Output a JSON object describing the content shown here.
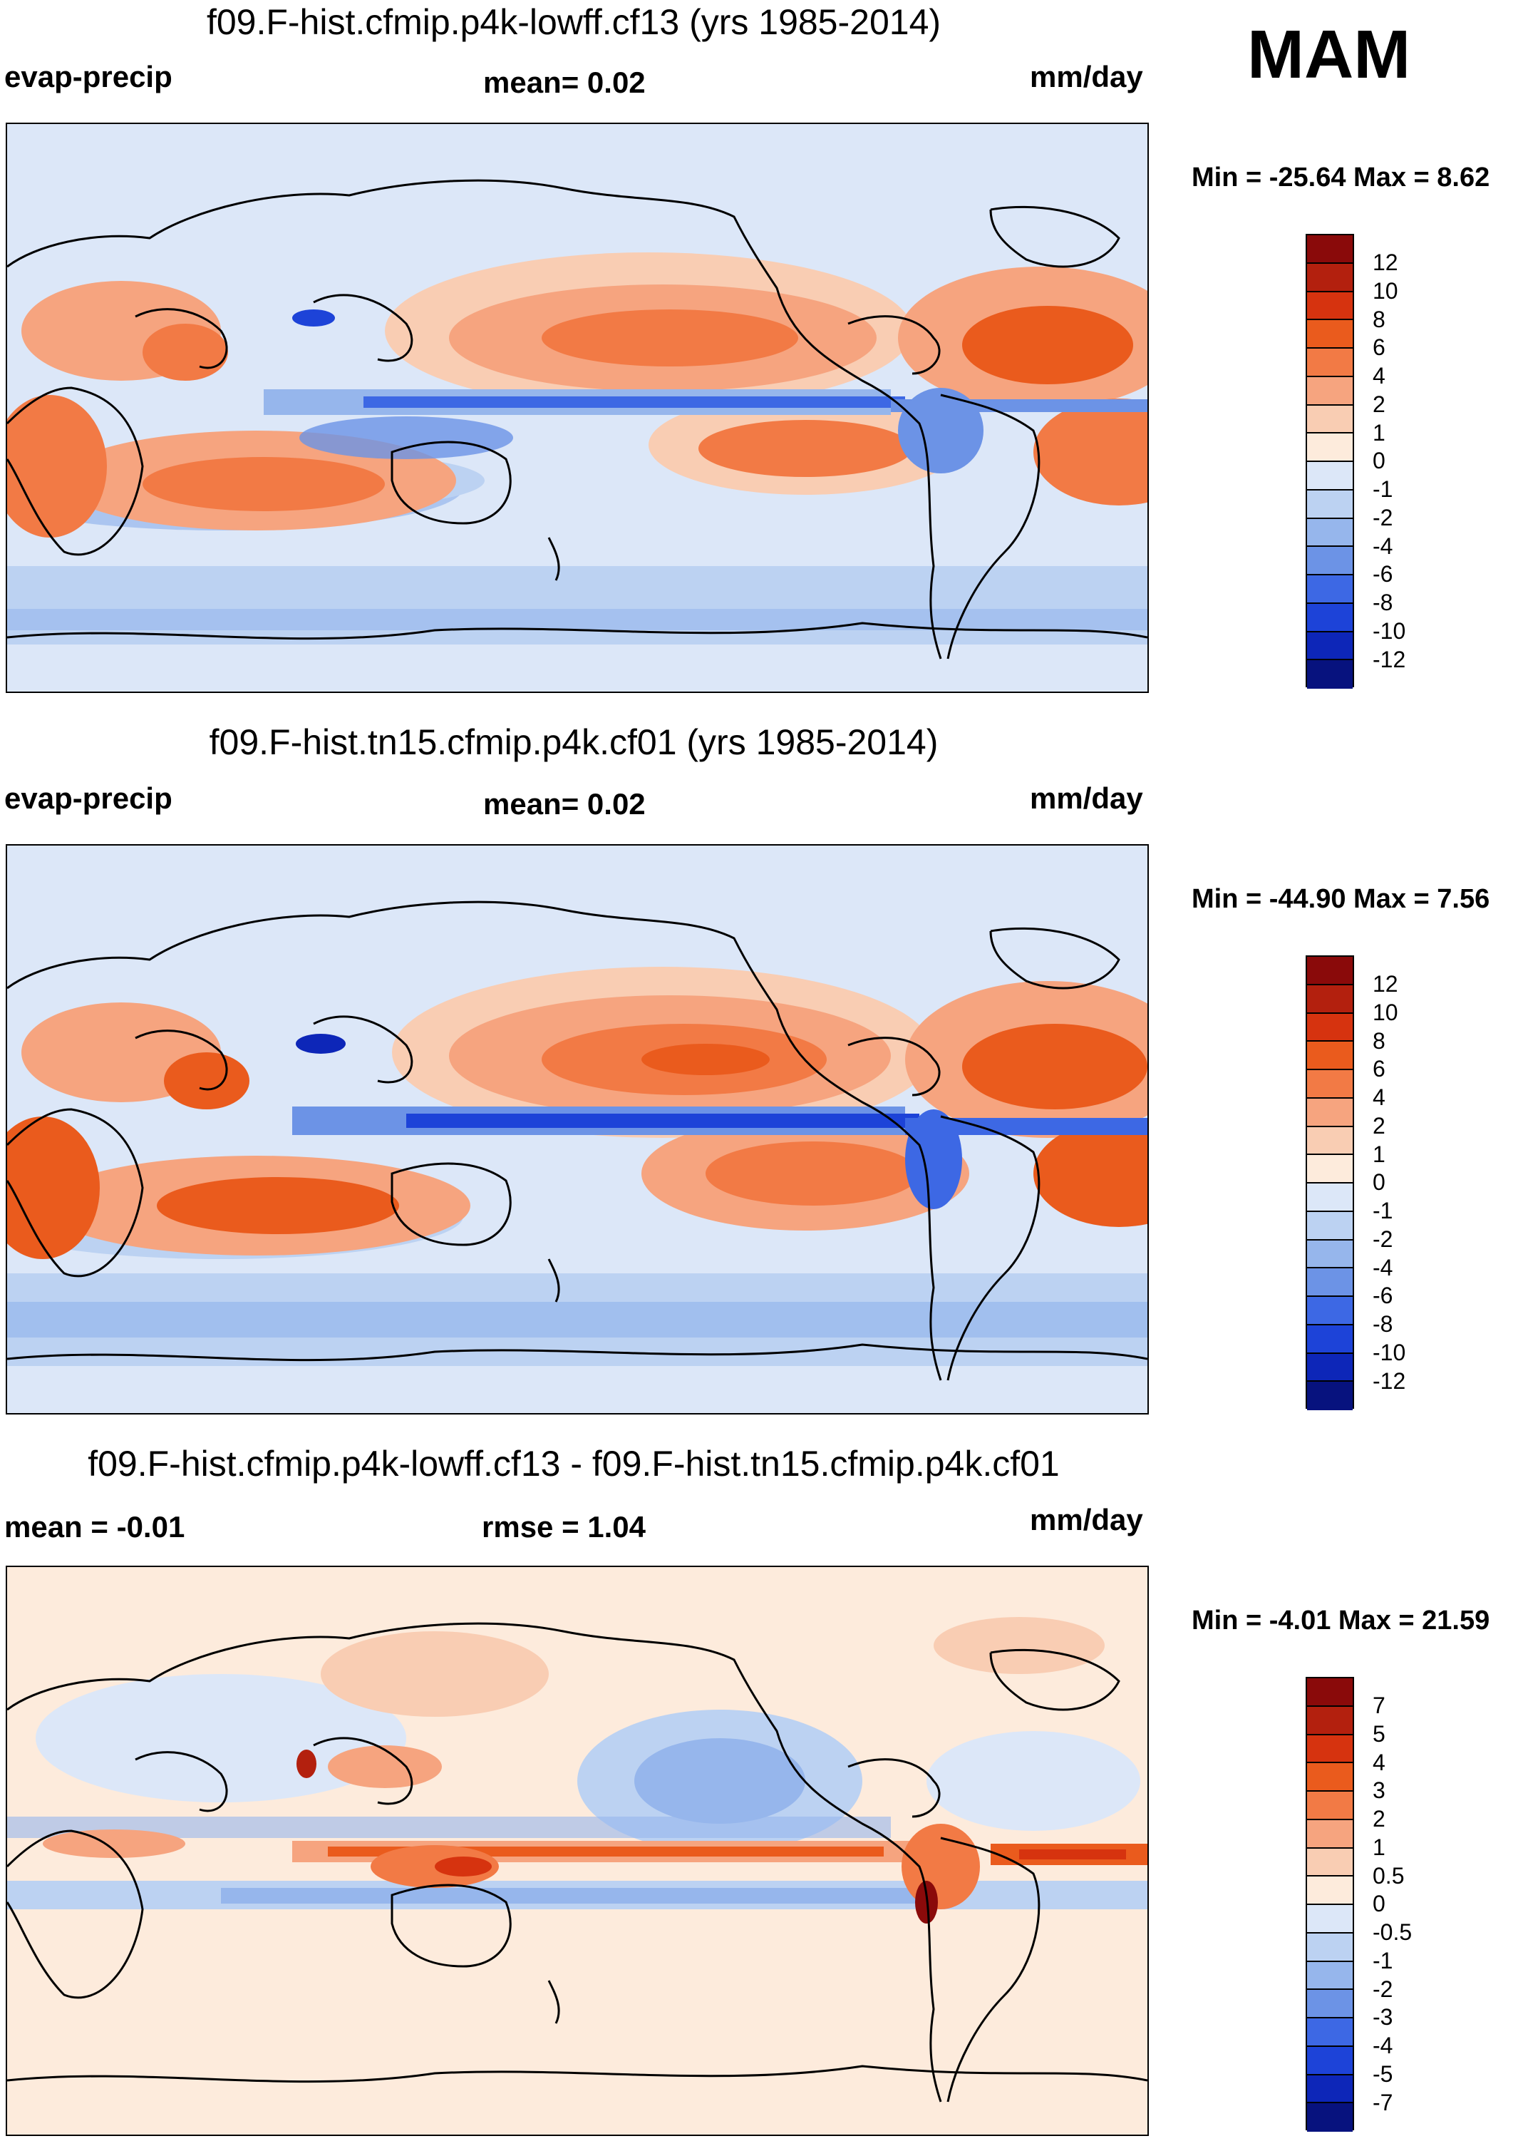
{
  "season": "MAM",
  "panels": [
    {
      "title": "f09.F-hist.cfmip.p4k-lowff.cf13 (yrs 1985-2014)",
      "left_label": "evap-precip",
      "center_label": "mean=   0.02",
      "right_label": "mm/day",
      "minmax": "Min = -25.64 Max =   8.62"
    },
    {
      "title": "f09.F-hist.tn15.cfmip.p4k.cf01 (yrs 1985-2014)",
      "left_label": "evap-precip",
      "center_label": "mean=   0.02",
      "right_label": "mm/day",
      "minmax": "Min = -44.90 Max =   7.56"
    },
    {
      "title": "f09.F-hist.cfmip.p4k-lowff.cf13 - f09.F-hist.tn15.cfmip.p4k.cf01",
      "left_label": "mean =  -0.01",
      "center_label": "rmse =    1.04",
      "right_label": "mm/day",
      "minmax": "Min =  -4.01 Max =  21.59"
    }
  ],
  "colorbars": {
    "main": {
      "labels": [
        "12",
        "10",
        "8",
        "6",
        "4",
        "2",
        "1",
        "0",
        "-1",
        "-2",
        "-4",
        "-6",
        "-8",
        "-10",
        "-12"
      ],
      "colors": [
        "#8a0a0a",
        "#b3200e",
        "#d6330f",
        "#ea5b1d",
        "#f27a45",
        "#f6a47f",
        "#f9cdb3",
        "#fdebdc",
        "#dce7f8",
        "#bcd2f2",
        "#96b6ec",
        "#6c93e6",
        "#3d68e4",
        "#1d43d8",
        "#0d26b8",
        "#07127e"
      ]
    },
    "diff": {
      "labels": [
        "7",
        "5",
        "4",
        "3",
        "2",
        "1",
        "0.5",
        "0",
        "-0.5",
        "-1",
        "-2",
        "-3",
        "-4",
        "-5",
        "-7"
      ],
      "colors": [
        "#8a0a0a",
        "#b3200e",
        "#d6330f",
        "#ea5b1d",
        "#f27a45",
        "#f6a47f",
        "#f9cdb3",
        "#fdebdc",
        "#dce7f8",
        "#bcd2f2",
        "#96b6ec",
        "#6c93e6",
        "#3d68e4",
        "#1d43d8",
        "#0d26b8",
        "#07127e"
      ]
    }
  }
}
